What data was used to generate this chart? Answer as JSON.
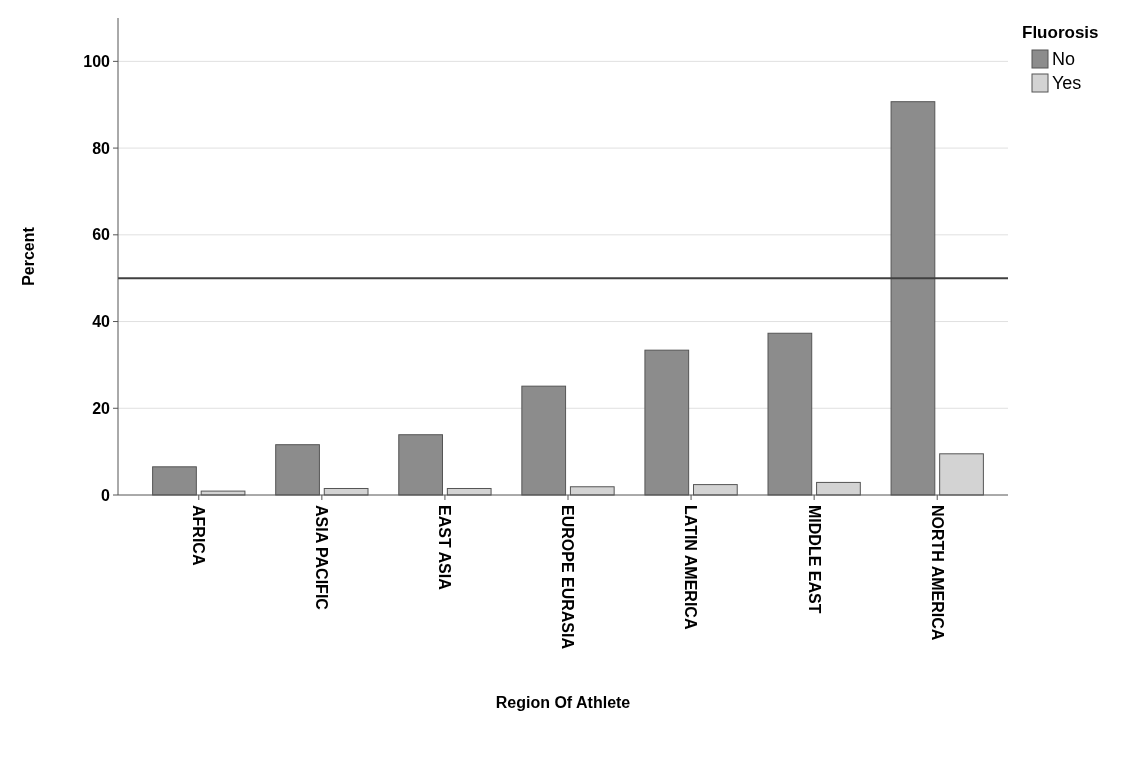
{
  "chart_data": {
    "type": "bar",
    "xlabel": "Region Of Athlete",
    "ylabel": "Percent",
    "legend_title": "Fluorosis",
    "categories": [
      "AFRICA",
      "ASIA PACIFIC",
      "EAST ASIA",
      "EUROPE EURASIA",
      "LATIN AMERICA",
      "MIDDLE EAST",
      "NORTH AMERICA"
    ],
    "series": [
      {
        "name": "No",
        "color": "#8c8c8c",
        "values": [
          6.5,
          11.6,
          13.9,
          25.1,
          33.4,
          37.3,
          90.7
        ]
      },
      {
        "name": "Yes",
        "color": "#d3d3d3",
        "values": [
          0.9,
          1.5,
          1.5,
          1.9,
          2.4,
          2.9,
          9.5
        ]
      }
    ],
    "ylim": [
      0,
      110
    ],
    "yticks": [
      0,
      20,
      40,
      60,
      80,
      100
    ],
    "grid": "y",
    "legend": "top right",
    "ref_lines": [
      {
        "axis": "y",
        "value": 50,
        "color": "#404040"
      }
    ]
  }
}
